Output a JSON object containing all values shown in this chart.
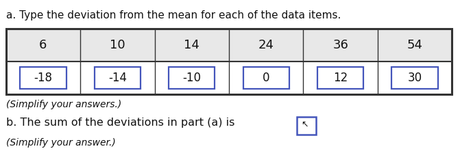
{
  "title_a": "a. Type the deviation from the mean for each of the data items.",
  "row1": [
    "6",
    "10",
    "14",
    "24",
    "36",
    "54"
  ],
  "row2_raw": [
    "-18",
    "-14",
    "-10",
    "0",
    "12",
    "30"
  ],
  "note_a": "(Simplify your answers.)",
  "text_b": "b. The sum of the deviations in part (a) is",
  "note_b": "(Simplify your answer.)",
  "box_border_color": "#4455bb",
  "table_border_color": "#333333",
  "font_color": "#111111",
  "title_fontsize": 11.0,
  "cell_fontsize": 12,
  "text_fontsize": 11.5
}
